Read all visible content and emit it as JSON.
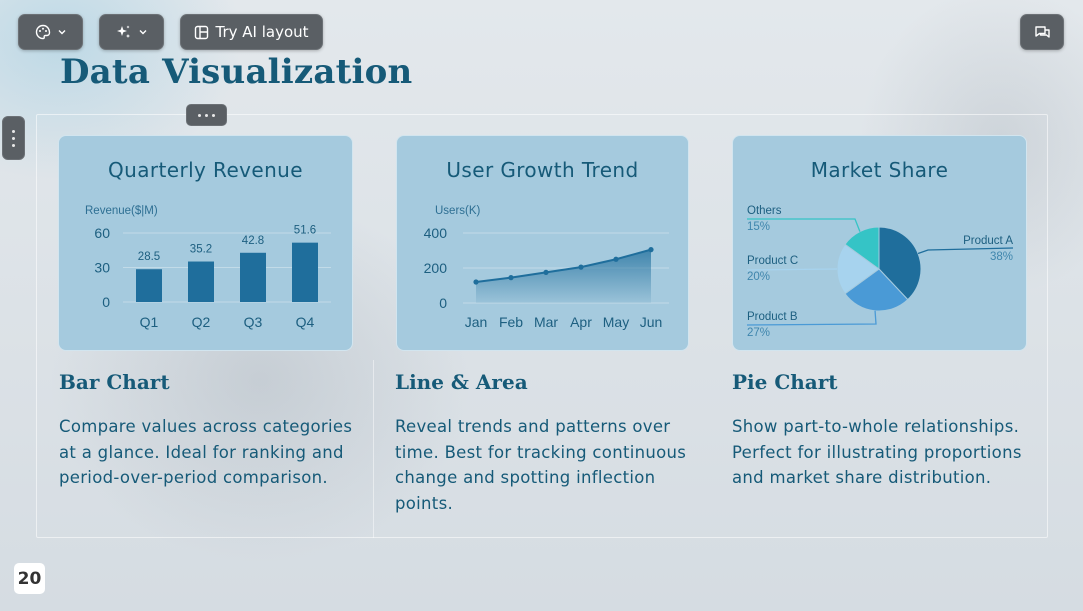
{
  "toolbar": {
    "theme_icon": "palette-icon",
    "magic_icon": "sparkles-icon",
    "ai_layout_label": "Try AI layout",
    "comment_icon": "comment-icon"
  },
  "page": {
    "title": "Data Visualization",
    "number": "20"
  },
  "cards": {
    "bar": {
      "title": "Quarterly Revenue",
      "heading": "Bar Chart",
      "description": "Compare values across categories at a glance. Ideal for ranking and period-over-period comparison."
    },
    "line": {
      "title": "User Growth Trend",
      "heading": "Line & Area",
      "description": "Reveal trends and patterns over time. Best for tracking continuous change and spotting inflection points."
    },
    "pie": {
      "title": "Market Share",
      "heading": "Pie Chart",
      "description": "Show part-to-whole relationships. Perfect for illustrating proportions and market share distribution."
    }
  },
  "chart_data": [
    {
      "type": "bar",
      "title": "Quarterly Revenue",
      "ylabel": "Revenue($|M)",
      "categories": [
        "Q1",
        "Q2",
        "Q3",
        "Q4"
      ],
      "values": [
        28.5,
        35.2,
        42.8,
        51.6
      ],
      "yticks": [
        0,
        30,
        60
      ],
      "ylim": [
        0,
        60
      ],
      "color": "#1f6e9c"
    },
    {
      "type": "line",
      "title": "User Growth Trend",
      "ylabel": "Users(K)",
      "categories": [
        "Jan",
        "Feb",
        "Mar",
        "Apr",
        "May",
        "Jun"
      ],
      "values": [
        120,
        145,
        175,
        205,
        250,
        305
      ],
      "yticks": [
        0,
        200,
        400
      ],
      "ylim": [
        0,
        400
      ],
      "color": "#1f6e9c"
    },
    {
      "type": "pie",
      "title": "Market Share",
      "slices": [
        {
          "name": "Product A",
          "value": 38,
          "label": "38%",
          "color": "#1f6e9c"
        },
        {
          "name": "Product B",
          "value": 27,
          "label": "27%",
          "color": "#4a9ad6"
        },
        {
          "name": "Product C",
          "value": 20,
          "label": "20%",
          "color": "#a7d3ee"
        },
        {
          "name": "Others",
          "value": 15,
          "label": "15%",
          "color": "#35c4c6"
        }
      ]
    }
  ]
}
